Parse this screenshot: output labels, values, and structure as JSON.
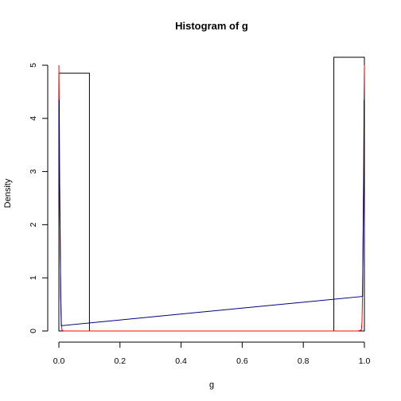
{
  "chart_data": {
    "type": "bar",
    "title": "Histogram of g",
    "xlabel": "g",
    "ylabel": "Density",
    "xlim": [
      0.0,
      1.0
    ],
    "ylim": [
      0,
      5.2
    ],
    "grid": false,
    "x_ticks": [
      {
        "value": 0.0,
        "label": "0.0"
      },
      {
        "value": 0.2,
        "label": "0.2"
      },
      {
        "value": 0.4,
        "label": "0.4"
      },
      {
        "value": 0.6,
        "label": "0.6"
      },
      {
        "value": 0.8,
        "label": "0.8"
      },
      {
        "value": 1.0,
        "label": "1.0"
      }
    ],
    "y_ticks": [
      {
        "value": 0,
        "label": "0"
      },
      {
        "value": 1,
        "label": "1"
      },
      {
        "value": 2,
        "label": "2"
      },
      {
        "value": 3,
        "label": "3"
      },
      {
        "value": 4,
        "label": "4"
      },
      {
        "value": 5,
        "label": "5"
      }
    ],
    "bins": [
      {
        "start": 0.0,
        "end": 0.1,
        "density": 4.85
      },
      {
        "start": 0.1,
        "end": 0.2,
        "density": 0
      },
      {
        "start": 0.2,
        "end": 0.3,
        "density": 0
      },
      {
        "start": 0.3,
        "end": 0.4,
        "density": 0
      },
      {
        "start": 0.4,
        "end": 0.5,
        "density": 0
      },
      {
        "start": 0.5,
        "end": 0.6,
        "density": 0
      },
      {
        "start": 0.6,
        "end": 0.7,
        "density": 0
      },
      {
        "start": 0.7,
        "end": 0.8,
        "density": 0
      },
      {
        "start": 0.8,
        "end": 0.9,
        "density": 0
      },
      {
        "start": 0.9,
        "end": 1.0,
        "density": 5.15
      }
    ],
    "bar_fill": "none",
    "bar_stroke": "#000000",
    "series": [
      {
        "type": "line",
        "color": "#ff0000",
        "x": [
          0.0,
          0.001,
          0.002,
          0.004,
          0.006,
          0.008,
          0.01,
          0.015,
          0.02,
          0.05,
          0.1,
          0.2,
          0.3,
          0.4,
          0.5,
          0.6,
          0.7,
          0.8,
          0.9,
          0.95,
          0.98,
          0.99,
          0.992,
          0.994,
          0.996,
          0.998,
          0.999,
          1.0
        ],
        "y": [
          5.0,
          4.4,
          3.2,
          1.9,
          0.7,
          0.15,
          0.02,
          0.0,
          0.0,
          0.0,
          0.0,
          0.0,
          0.0,
          0.0,
          0.0,
          0.0,
          0.0,
          0.0,
          0.0,
          0.0,
          0.0,
          0.02,
          0.15,
          0.7,
          1.9,
          3.2,
          4.4,
          5.0
        ]
      },
      {
        "type": "line",
        "color": "#000080",
        "x": [
          0.001,
          0.002,
          0.004,
          0.006,
          0.008,
          0.994,
          0.996,
          0.998,
          0.999
        ],
        "y": [
          4.35,
          3.1,
          1.85,
          0.65,
          0.1,
          0.65,
          1.85,
          3.1,
          4.35
        ]
      }
    ]
  }
}
